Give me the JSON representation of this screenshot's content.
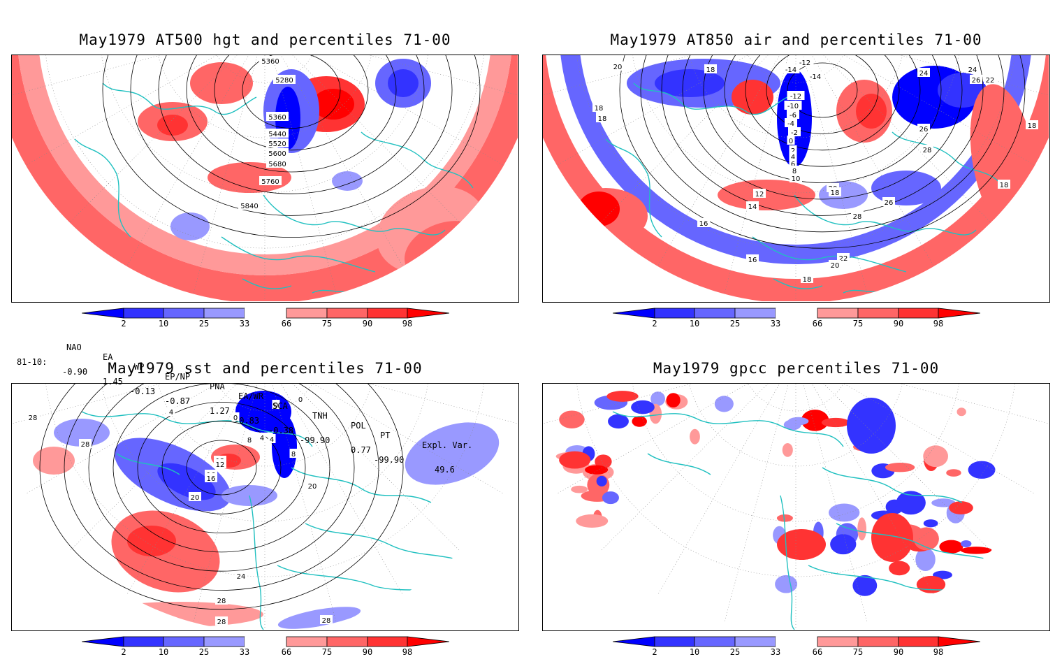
{
  "panels": [
    {
      "id": "hgt",
      "title": "May1979 AT500 hgt and percentiles 71-00",
      "contour_labels": [
        "5360",
        "5280",
        "5360",
        "5440",
        "5520",
        "5600",
        "5680",
        "5760",
        "5840"
      ]
    },
    {
      "id": "air",
      "title": "May1979 AT850 air and percentiles 71-00",
      "contour_labels": [
        "-12",
        "-14",
        "-14",
        "-12",
        "-10",
        "-6",
        "-4",
        "-2",
        "0",
        "2",
        "4",
        "6",
        "8",
        "10",
        "12",
        "14",
        "16",
        "18",
        "18",
        "20",
        "18",
        "18",
        "24",
        "24",
        "26",
        "22",
        "26",
        "28",
        "18",
        "18",
        "26",
        "28",
        "22",
        "20",
        "18",
        "16",
        "20"
      ]
    },
    {
      "id": "sst",
      "title": "May1979 sst and percentiles 71-00",
      "contour_labels": [
        "28",
        "28",
        "4",
        "0",
        "0",
        "0",
        "4",
        "4",
        "8",
        "8",
        "12",
        "12",
        "16",
        "20",
        "16",
        "20",
        "24",
        "28",
        "28",
        "28"
      ]
    },
    {
      "id": "gpcc",
      "title": "May1979 gpcc percentiles 71-00",
      "contour_labels": []
    }
  ],
  "colorbar": {
    "labels": [
      "2",
      "10",
      "25",
      "33",
      "66",
      "75",
      "90",
      "98"
    ],
    "colors": {
      "blue_deep": "#0000ff",
      "blue_dark": "#3333ff",
      "blue_mid": "#6666ff",
      "blue_light": "#9999ff",
      "red_light": "#ff9999",
      "red_mid": "#ff6666",
      "red_dark": "#ff3333",
      "red_deep": "#ff0000"
    }
  },
  "indices": {
    "header": [
      "NAO",
      "EA",
      "WP",
      "EP/NP",
      "PNA",
      "EA/WR",
      "SCA",
      "TNH",
      "POL",
      "PT",
      "Expl. Var."
    ],
    "row_label": "81-10:",
    "values": [
      "-0.90",
      "1.45",
      "-0.13",
      "-0.87",
      "1.27",
      "-0.83",
      "-0.38",
      "-99.90",
      "0.77",
      "-99.90",
      "49.6"
    ]
  },
  "map_colors": {
    "coast": "#20c0c0",
    "contour": "#000000",
    "grid": "#888888"
  }
}
